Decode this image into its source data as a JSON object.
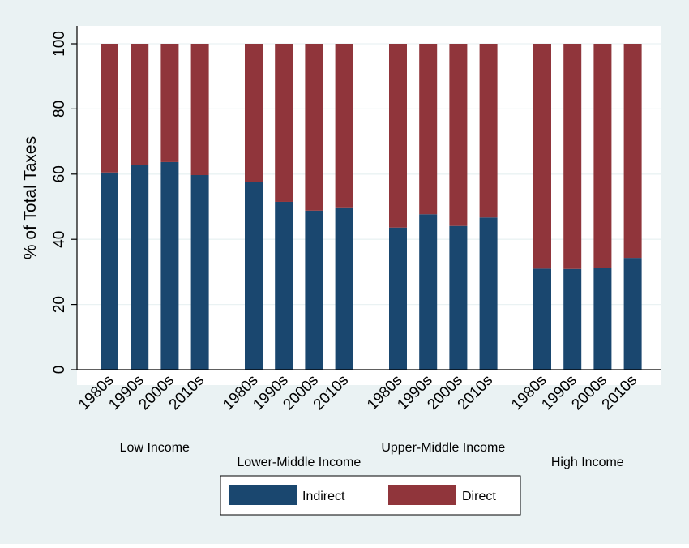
{
  "chart_data": {
    "type": "bar",
    "stacked": true,
    "ylabel": "% of Total Taxes",
    "ylim": [
      0,
      100
    ],
    "yticks": [
      0,
      20,
      40,
      60,
      80,
      100
    ],
    "grid": true,
    "legend_position": "bottom",
    "groups": [
      {
        "name": "Low Income",
        "categories": [
          "1980s",
          "1990s",
          "2000s",
          "2010s"
        ],
        "indirect": [
          60.5,
          62.8,
          63.7,
          59.7
        ]
      },
      {
        "name": "Lower-Middle Income",
        "categories": [
          "1980s",
          "1990s",
          "2000s",
          "2010s"
        ],
        "indirect": [
          57.5,
          51.5,
          48.8,
          49.8
        ]
      },
      {
        "name": "Upper-Middle Income",
        "categories": [
          "1980s",
          "1990s",
          "2000s",
          "2010s"
        ],
        "indirect": [
          43.6,
          47.7,
          44.1,
          46.7
        ]
      },
      {
        "name": "High Income",
        "categories": [
          "1980s",
          "1990s",
          "2000s",
          "2010s"
        ],
        "indirect": [
          31.0,
          30.9,
          31.3,
          34.3
        ]
      }
    ],
    "series": [
      {
        "name": "Indirect",
        "color": "#1a476f"
      },
      {
        "name": "Direct",
        "color": "#90353b"
      }
    ]
  }
}
